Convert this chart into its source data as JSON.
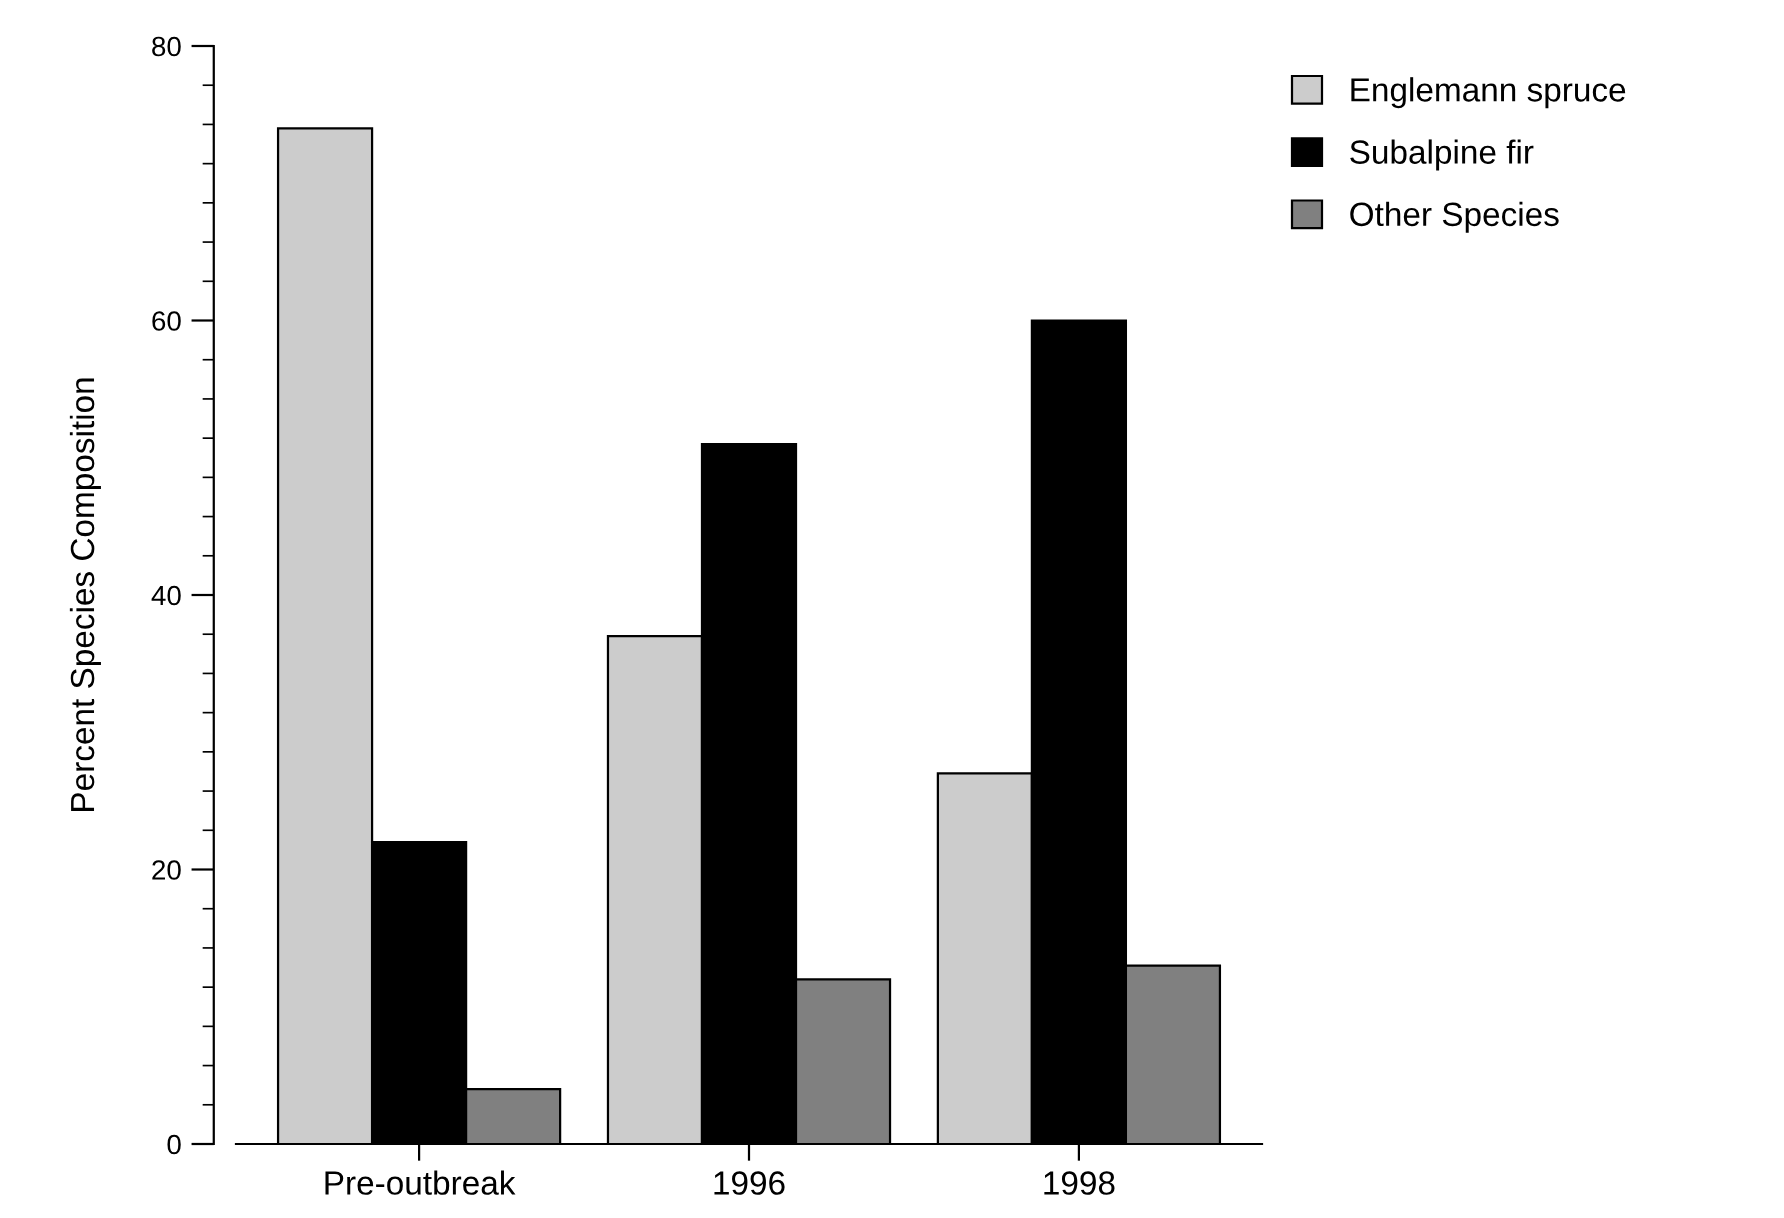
{
  "chart_data": {
    "type": "bar",
    "ylabel": "Percent Species Composition",
    "categories": [
      "Pre-outbreak",
      "1996",
      "1998"
    ],
    "series": [
      {
        "name": "Englemann spruce",
        "color": "#cccccc",
        "values": [
          74,
          37,
          27
        ]
      },
      {
        "name": "Subalpine fir",
        "color": "#000000",
        "values": [
          22,
          51,
          60
        ]
      },
      {
        "name": "Other Species",
        "color": "#808080",
        "values": [
          4,
          12,
          13
        ]
      }
    ],
    "ylim": [
      0,
      80
    ],
    "yticks": [
      0,
      20,
      40,
      60,
      80
    ],
    "grid": false,
    "legend": "top right"
  }
}
